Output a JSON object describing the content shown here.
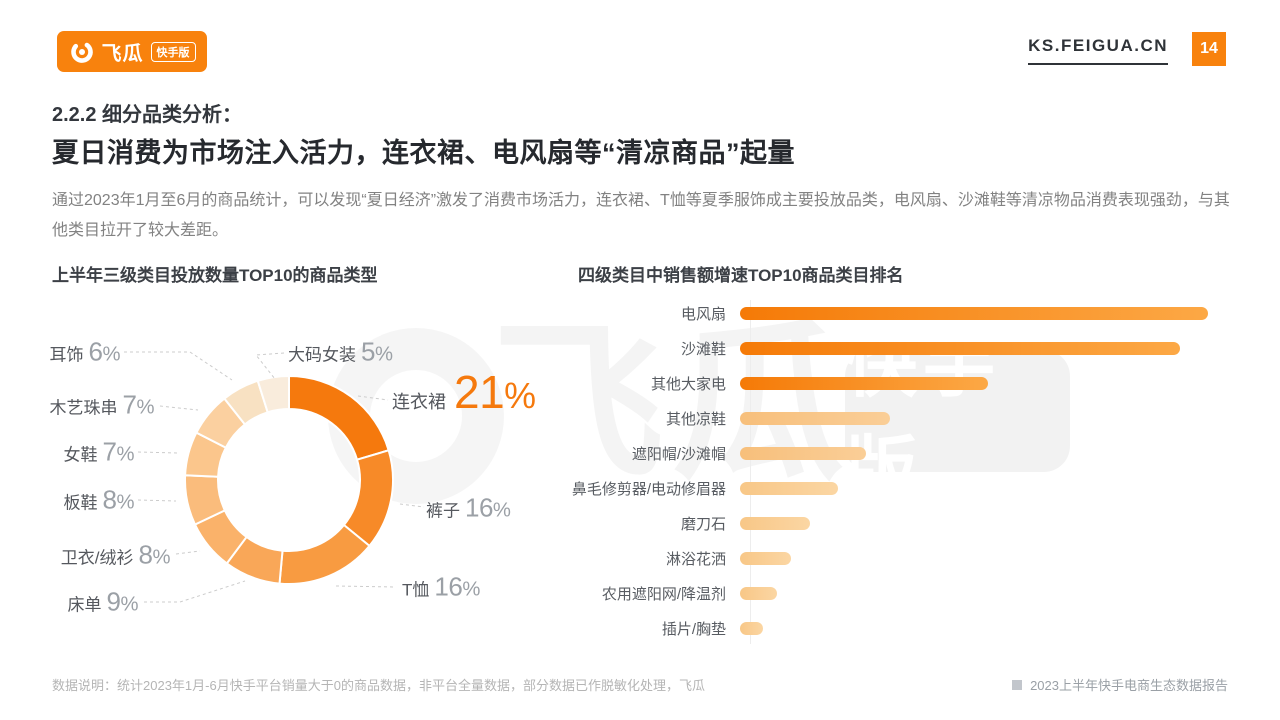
{
  "header": {
    "logo": {
      "brand": "飞瓜",
      "badge": "快手版"
    },
    "site_url": "KS.FEIGUA.CN",
    "page_number": "14"
  },
  "section": {
    "kicker": "2.2.2 细分品类分析：",
    "title": "夏日消费为市场注入活力，连衣裙、电风扇等“清凉商品”起量",
    "description": "通过2023年1月至6月的商品统计，可以发现“夏日经济”激发了消费市场活力，连衣裙、T恤等夏季服饰成主要投放品类，电风扇、沙滩鞋等清凉物品消费表现强劲，与其他类目拉开了较大差距。"
  },
  "watermark": {
    "brand": "飞瓜",
    "badge": "快手版"
  },
  "footer": {
    "note": "数据说明：统计2023年1月-6月快手平台销量大于0的商品数据，非平台全量数据，部分数据已作脱敏化处理，飞瓜",
    "source": "2023上半年快手电商生态数据报告"
  },
  "colors": {
    "brand_orange": "#F8820D",
    "highlight_orange": "#F5790D",
    "leader_line": "#cccccc",
    "value_gray": "#9ba0a6"
  },
  "chart_data": [
    {
      "type": "pie",
      "title": "上半年三级类目投放数量TOP10的商品类型",
      "donut": true,
      "unit": "%",
      "start_angle": "top",
      "direction": "clockwise",
      "slices": [
        {
          "label": "连衣裙",
          "value": 21,
          "color": "#F5790D",
          "highlight": true
        },
        {
          "label": "裤子",
          "value": 16,
          "color": "#F78A28"
        },
        {
          "label": "T恤",
          "value": 16,
          "color": "#F89B41"
        },
        {
          "label": "床单",
          "value": 9,
          "color": "#F9A758"
        },
        {
          "label": "卫衣/绒衫",
          "value": 8,
          "color": "#FAB26A"
        },
        {
          "label": "板鞋",
          "value": 8,
          "color": "#FABC7C"
        },
        {
          "label": "女鞋",
          "value": 7,
          "color": "#FBC68C"
        },
        {
          "label": "木艺珠串",
          "value": 7,
          "color": "#FBD0A0"
        },
        {
          "label": "耳饰",
          "value": 6,
          "color": "#F8E1C2"
        },
        {
          "label": "大码女装",
          "value": 5,
          "color": "#F9ECDC"
        }
      ]
    },
    {
      "type": "bar",
      "title": "四级类目中销售额增速TOP10商品类目排名",
      "orientation": "horizontal",
      "axis_values_shown": false,
      "note": "values are relative bar lengths estimated from pixels (no numeric axis in source)",
      "categories": [
        "电风扇",
        "沙滩鞋",
        "其他大家电",
        "其他凉鞋",
        "遮阳帽/沙滩帽",
        "鼻毛修剪器/电动修眉器",
        "磨刀石",
        "淋浴花洒",
        "农用遮阳网/降温剂",
        "插片/胸垫"
      ],
      "values": [
        100,
        94,
        53,
        32,
        27,
        21,
        15,
        11,
        8,
        5
      ],
      "bar_colors": [
        [
          "#F57A07",
          "#FCA845"
        ],
        [
          "#F57A07",
          "#FCA845"
        ],
        [
          "#F57A07",
          "#FCA845"
        ],
        [
          "#F7BF7B",
          "#FACE97"
        ],
        [
          "#F7BF7B",
          "#FACE97"
        ],
        [
          "#F8C787",
          "#FBD6A3"
        ],
        [
          "#F8C787",
          "#FBD6A3"
        ],
        [
          "#F8C787",
          "#FBD6A3"
        ],
        [
          "#F8C787",
          "#FBD6A3"
        ],
        [
          "#F8C787",
          "#FBD6A3"
        ]
      ]
    }
  ]
}
